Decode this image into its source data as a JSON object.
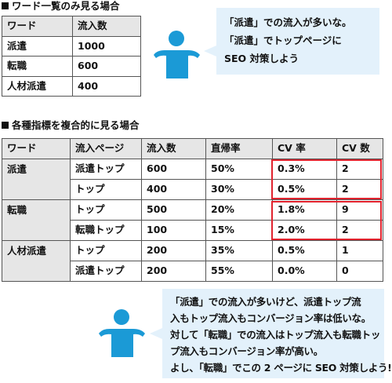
{
  "section1": {
    "title": "ワード一覧のみ見る場合",
    "headers": [
      "ワード",
      "流入数"
    ],
    "rows": [
      [
        "派遣",
        "1000"
      ],
      [
        "転職",
        "600"
      ],
      [
        "人材派遣",
        "400"
      ]
    ]
  },
  "bubble1": {
    "lines": [
      "「派遣」での流入が多いな。",
      "「派遣」でトップページに",
      "SEO 対策しよう"
    ]
  },
  "section2": {
    "title": "各種指標を複合的に見る場合",
    "headers": [
      "ワード",
      "流入ページ",
      "流入数",
      "直帰率",
      "CV 率",
      "CV 数"
    ],
    "groups": [
      {
        "word": "派遣",
        "rows": [
          [
            "派遣トップ",
            "600",
            "50%",
            "0.3%",
            "2"
          ],
          [
            "トップ",
            "400",
            "30%",
            "0.5%",
            "2"
          ]
        ]
      },
      {
        "word": "転職",
        "rows": [
          [
            "トップ",
            "500",
            "20%",
            "1.8%",
            "9"
          ],
          [
            "転職トップ",
            "100",
            "15%",
            "2.0%",
            "2"
          ]
        ]
      },
      {
        "word": "人材派遣",
        "rows": [
          [
            "トップ",
            "200",
            "35%",
            "0.5%",
            "1"
          ],
          [
            "派遣トップ",
            "200",
            "55%",
            "0.0%",
            "0"
          ]
        ]
      }
    ]
  },
  "bubble2": {
    "lines": [
      "「派遣」での流入が多いけど、派遣トップ流",
      "入もトップ流入もコンバージョン率は低いな。",
      "対して「転職」での流入はトップ流入も転職トッ",
      "プ流入もコンバージョン率が高い。",
      "よし、「転職」でこの 2 ページに SEO 対策しよう!"
    ]
  },
  "colors": {
    "header_bg": "#e6e6e6",
    "bubble_bg": "#e3f1fb",
    "person": "#1b9ad6",
    "highlight": "#e0232e"
  },
  "icons": [
    "person-icon",
    "square-bullet-icon"
  ]
}
